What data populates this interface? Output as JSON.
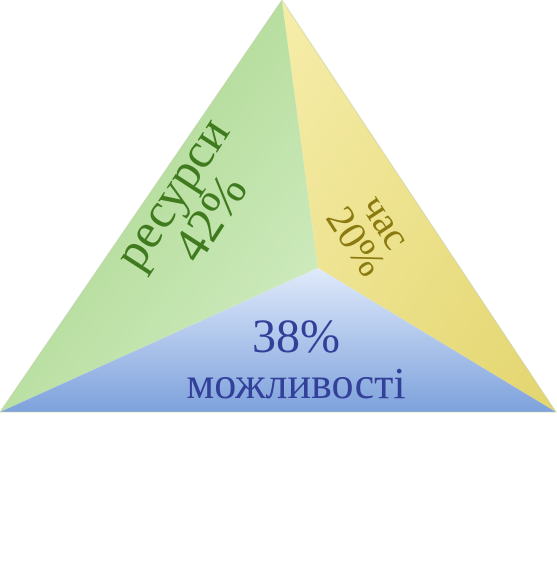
{
  "segments": [
    {
      "id": "resources",
      "label": "ресурси",
      "percent_text": "42%",
      "value": 42,
      "color_light": "#cfe8bf",
      "color_dark": "#86c466",
      "text_color": "#3f7a1f"
    },
    {
      "id": "time",
      "label": "час",
      "percent_text": "20%",
      "value": 20,
      "color_light": "#f7efb3",
      "color_dark": "#e2d46c",
      "text_color": "#8a7a10"
    },
    {
      "id": "opportunities",
      "label": "можливості",
      "percent_text": "38%",
      "value": 38,
      "color_light": "#dbe7fa",
      "color_dark": "#7fa3dd",
      "text_color": "#33409a"
    }
  ]
}
